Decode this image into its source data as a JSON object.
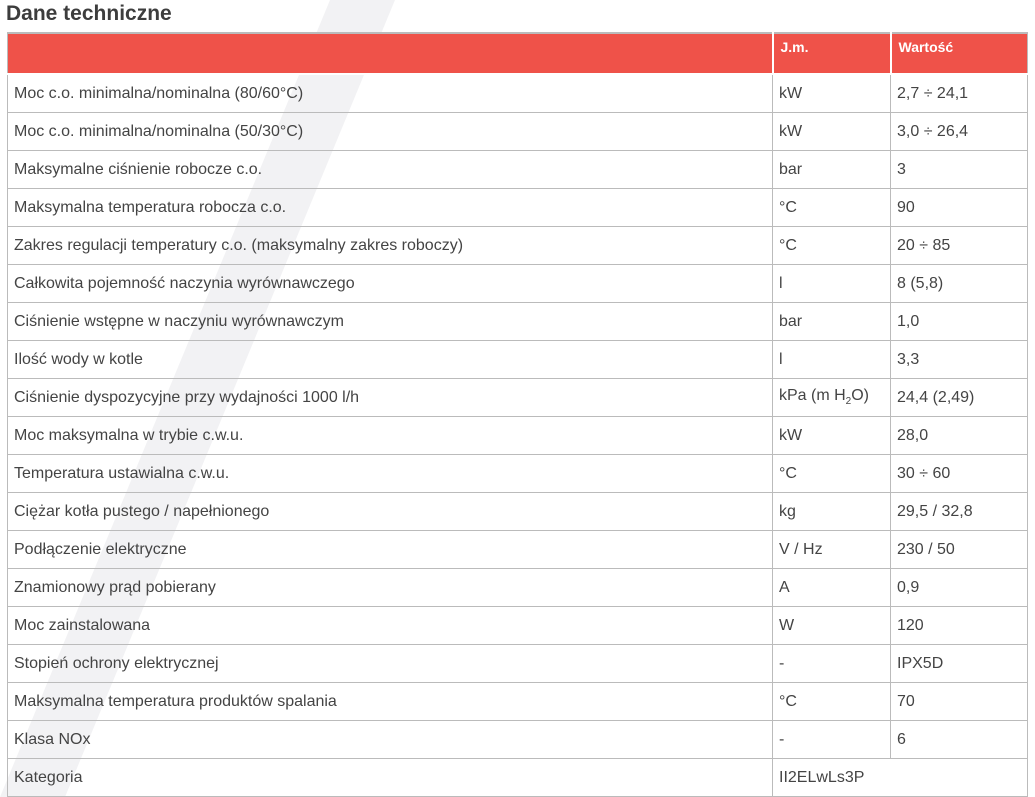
{
  "title": "Dane techniczne",
  "header": {
    "col1": "",
    "col2": "J.m.",
    "col3": "Wartość"
  },
  "accent_color": "#ef5249",
  "rows": [
    {
      "param": "Moc c.o. minimalna/nominalna (80/60°C)",
      "unit": "kW",
      "value": "2,7 ÷ 24,1"
    },
    {
      "param": "Moc c.o. minimalna/nominalna (50/30°C)",
      "unit": "kW",
      "value": "3,0 ÷ 26,4"
    },
    {
      "param": "Maksymalne ciśnienie robocze c.o.",
      "unit": "bar",
      "value": "3"
    },
    {
      "param": "Maksymalna temperatura robocza c.o.",
      "unit": "°C",
      "value": "90"
    },
    {
      "param": "Zakres regulacji temperatury c.o. (maksymalny zakres roboczy)",
      "unit": "°C",
      "value": "20 ÷ 85"
    },
    {
      "param": "Całkowita pojemność naczynia wyrównawczego",
      "unit": "l",
      "value": "8 (5,8)"
    },
    {
      "param": "Ciśnienie wstępne w naczyniu wyrównawczym",
      "unit": "bar",
      "value": "1,0"
    },
    {
      "param": "Ilość wody w kotle",
      "unit": "l",
      "value": "3,3"
    },
    {
      "param": "Ciśnienie dyspozycyjne przy wydajności 1000 l/h",
      "unit_pre": "kPa (m H",
      "unit_sub": "2",
      "unit_post": "O)",
      "value": "24,4 (2,49)"
    },
    {
      "param": "Moc maksymalna w trybie c.w.u.",
      "unit": "kW",
      "value": "28,0"
    },
    {
      "param": "Temperatura ustawialna c.w.u.",
      "unit": "°C",
      "value": "30 ÷ 60"
    },
    {
      "param": "Ciężar kotła pustego / napełnionego",
      "unit": "kg",
      "value": "29,5 / 32,8"
    },
    {
      "param": "Podłączenie elektryczne",
      "unit": "V / Hz",
      "value": "230 / 50"
    },
    {
      "param": "Znamionowy prąd pobierany",
      "unit": "A",
      "value": "0,9"
    },
    {
      "param": "Moc zainstalowana",
      "unit": "W",
      "value": "120"
    },
    {
      "param": "Stopień ochrony elektrycznej",
      "unit": "-",
      "value": "IPX5D"
    },
    {
      "param": "Maksymalna temperatura produktów spalania",
      "unit": "°C",
      "value": "70"
    },
    {
      "param": "Klasa NOx",
      "unit": "-",
      "value": "6"
    }
  ],
  "last_row": {
    "param": "Kategoria",
    "value": "II2ELwLs3P"
  }
}
